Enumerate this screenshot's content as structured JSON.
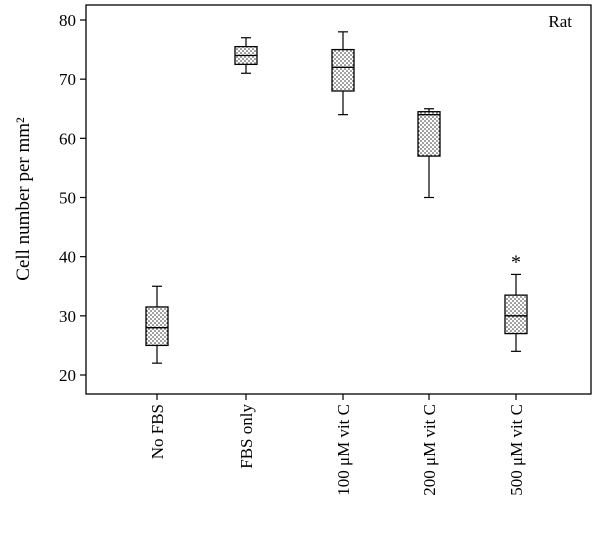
{
  "chart_data": {
    "type": "box",
    "title": "",
    "corner_label": "Rat",
    "ylabel": "Cell number per mm²",
    "ylim": [
      16,
      82
    ],
    "yticks": [
      20,
      30,
      40,
      50,
      60,
      70,
      80
    ],
    "grid": false,
    "categories": [
      "No FBS",
      "FBS only",
      "100 μM vit C",
      "200 μM vit C",
      "500 μM vit C"
    ],
    "boxes": [
      {
        "min": 22,
        "q1": 25,
        "median": 28,
        "q3": 31.5,
        "max": 35,
        "annotation": ""
      },
      {
        "min": 71,
        "q1": 72.5,
        "median": 74,
        "q3": 75.5,
        "max": 77,
        "annotation": ""
      },
      {
        "min": 64,
        "q1": 68,
        "median": 72,
        "q3": 75,
        "max": 78,
        "annotation": ""
      },
      {
        "min": 50,
        "q1": 57,
        "median": 64,
        "q3": 64.5,
        "max": 65,
        "annotation": ""
      },
      {
        "min": 24,
        "q1": 27,
        "median": 30,
        "q3": 33.5,
        "max": 37,
        "annotation": "*"
      }
    ],
    "box_fill": "dotted"
  }
}
